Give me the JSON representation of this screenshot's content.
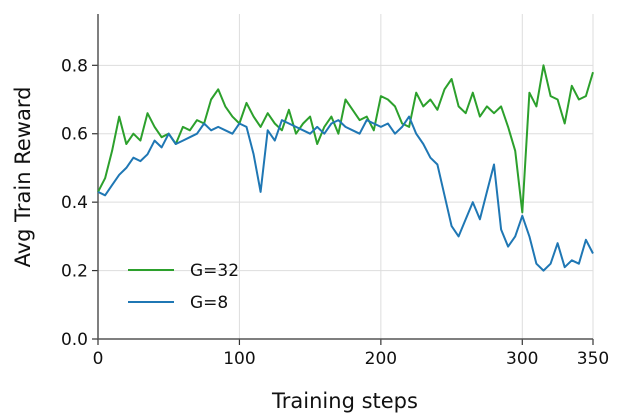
{
  "chart_data": {
    "type": "line",
    "xlabel": "Training steps",
    "ylabel": "Avg Train Reward",
    "x": [
      0,
      5,
      10,
      15,
      20,
      25,
      30,
      35,
      40,
      45,
      50,
      55,
      60,
      65,
      70,
      75,
      80,
      85,
      90,
      95,
      100,
      105,
      110,
      115,
      120,
      125,
      130,
      135,
      140,
      145,
      150,
      155,
      160,
      165,
      170,
      175,
      180,
      185,
      190,
      195,
      200,
      205,
      210,
      215,
      220,
      225,
      230,
      235,
      240,
      245,
      250,
      255,
      260,
      265,
      270,
      275,
      280,
      285,
      290,
      295,
      300,
      305,
      310,
      315,
      320,
      325,
      330,
      335,
      340,
      345,
      350
    ],
    "series": [
      {
        "name": "G=32",
        "color": "#2ca02c",
        "values": [
          0.43,
          0.47,
          0.55,
          0.65,
          0.57,
          0.6,
          0.58,
          0.66,
          0.62,
          0.59,
          0.6,
          0.57,
          0.62,
          0.61,
          0.64,
          0.63,
          0.7,
          0.73,
          0.68,
          0.65,
          0.63,
          0.69,
          0.65,
          0.62,
          0.66,
          0.63,
          0.61,
          0.67,
          0.6,
          0.63,
          0.65,
          0.57,
          0.62,
          0.65,
          0.6,
          0.7,
          0.67,
          0.64,
          0.65,
          0.61,
          0.71,
          0.7,
          0.68,
          0.63,
          0.62,
          0.72,
          0.68,
          0.7,
          0.67,
          0.73,
          0.76,
          0.68,
          0.66,
          0.72,
          0.65,
          0.68,
          0.66,
          0.68,
          0.62,
          0.55,
          0.37,
          0.72,
          0.68,
          0.8,
          0.71,
          0.7,
          0.63,
          0.74,
          0.7,
          0.71,
          0.78
        ]
      },
      {
        "name": "G=8",
        "color": "#1f77b4",
        "values": [
          0.43,
          0.42,
          0.45,
          0.48,
          0.5,
          0.53,
          0.52,
          0.54,
          0.58,
          0.56,
          0.6,
          0.57,
          0.58,
          0.59,
          0.6,
          0.63,
          0.61,
          0.62,
          0.61,
          0.6,
          0.63,
          0.62,
          0.54,
          0.43,
          0.61,
          0.58,
          0.64,
          0.63,
          0.62,
          0.61,
          0.6,
          0.62,
          0.6,
          0.63,
          0.64,
          0.62,
          0.61,
          0.6,
          0.64,
          0.63,
          0.62,
          0.63,
          0.6,
          0.62,
          0.65,
          0.6,
          0.57,
          0.53,
          0.51,
          0.42,
          0.33,
          0.3,
          0.35,
          0.4,
          0.35,
          0.43,
          0.51,
          0.32,
          0.27,
          0.3,
          0.36,
          0.3,
          0.22,
          0.2,
          0.22,
          0.28,
          0.21,
          0.23,
          0.22,
          0.29,
          0.25
        ]
      }
    ],
    "xlim": [
      0,
      350
    ],
    "xticks": [
      0,
      100,
      200,
      300,
      350
    ],
    "ylim": [
      0,
      0.95
    ],
    "yticks": [
      {
        "value": 0,
        "label": "0.0"
      },
      0.2,
      0.4,
      0.6,
      0.8
    ],
    "grid": true,
    "legend": "lower left"
  }
}
